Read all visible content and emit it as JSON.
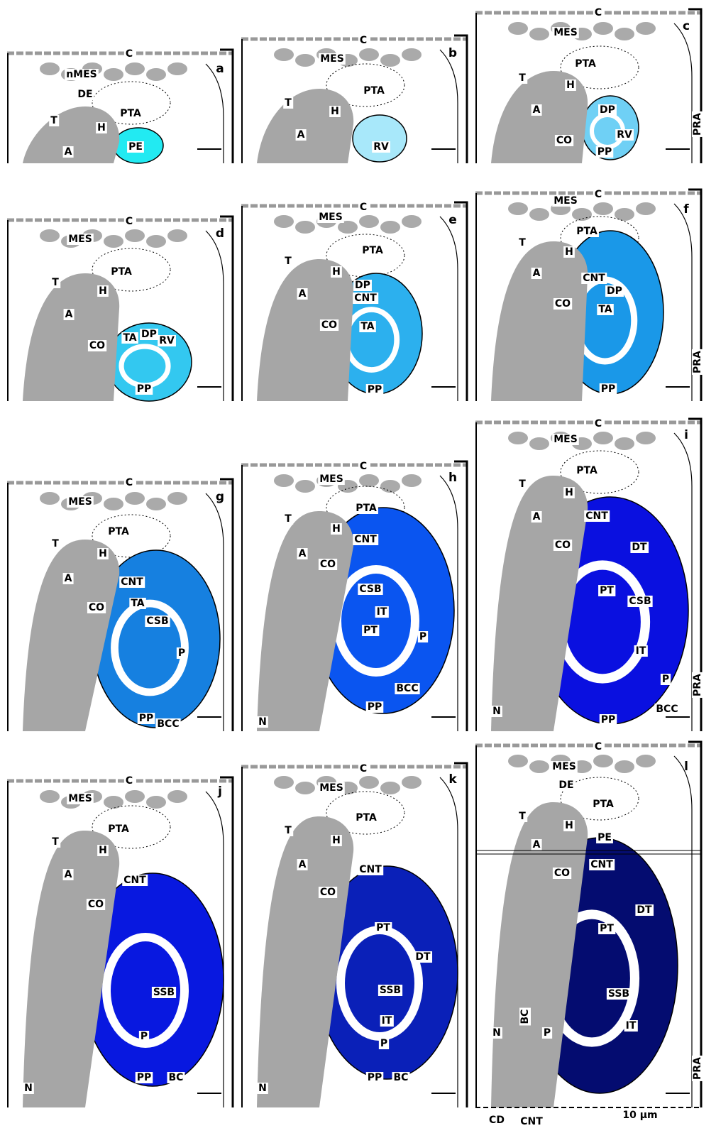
{
  "panels": [
    {
      "letter": "a",
      "labels": [
        "C",
        "nMES",
        "DE",
        "PTA",
        "T",
        "H",
        "A",
        "PE"
      ]
    },
    {
      "letter": "b",
      "labels": [
        "C",
        "MES",
        "PTA",
        "T",
        "H",
        "A",
        "RV"
      ]
    },
    {
      "letter": "c",
      "labels": [
        "C",
        "MES",
        "PTA",
        "T",
        "H",
        "DP",
        "A",
        "RV",
        "CO",
        "PP",
        "PRA"
      ]
    },
    {
      "letter": "d",
      "labels": [
        "C",
        "MES",
        "PTA",
        "T",
        "H",
        "A",
        "TA",
        "DP",
        "RV",
        "CO",
        "PP"
      ]
    },
    {
      "letter": "e",
      "labels": [
        "C",
        "MES",
        "PTA",
        "T",
        "H",
        "A",
        "DP",
        "CNT",
        "CO",
        "TA",
        "PP"
      ]
    },
    {
      "letter": "f",
      "labels": [
        "C",
        "MES",
        "PTA",
        "T",
        "H",
        "A",
        "CNT",
        "DP",
        "CO",
        "TA",
        "PP",
        "PRA"
      ]
    },
    {
      "letter": "g",
      "labels": [
        "C",
        "MES",
        "PTA",
        "T",
        "H",
        "A",
        "CNT",
        "CO",
        "TA",
        "CSB",
        "P",
        "PP",
        "BCC"
      ]
    },
    {
      "letter": "h",
      "labels": [
        "C",
        "MES",
        "PTA",
        "T",
        "H",
        "A",
        "CNT",
        "CO",
        "CSB",
        "IT",
        "PT",
        "P",
        "BCC",
        "PP",
        "N"
      ]
    },
    {
      "letter": "i",
      "labels": [
        "C",
        "MES",
        "PTA",
        "T",
        "H",
        "A",
        "CNT",
        "CO",
        "DT",
        "PT",
        "CSB",
        "IT",
        "P",
        "PRA",
        "BCC",
        "PP",
        "N"
      ]
    },
    {
      "letter": "j",
      "labels": [
        "C",
        "MES",
        "PTA",
        "T",
        "H",
        "A",
        "CNT",
        "CO",
        "SSB",
        "P",
        "PP",
        "BC",
        "N"
      ]
    },
    {
      "letter": "k",
      "labels": [
        "C",
        "MES",
        "PTA",
        "T",
        "H",
        "A",
        "CNT",
        "CO",
        "PT",
        "DT",
        "SSB",
        "IT",
        "P",
        "PP",
        "BC",
        "N"
      ]
    },
    {
      "letter": "l",
      "labels": [
        "C",
        "MES",
        "DE",
        "PTA",
        "T",
        "H",
        "A",
        "PE",
        "CO",
        "CNT",
        "DT",
        "PT",
        "SSB",
        "BC",
        "P",
        "IT",
        "N",
        "PRA",
        "CD",
        "CNT",
        "10 µm"
      ]
    }
  ]
}
